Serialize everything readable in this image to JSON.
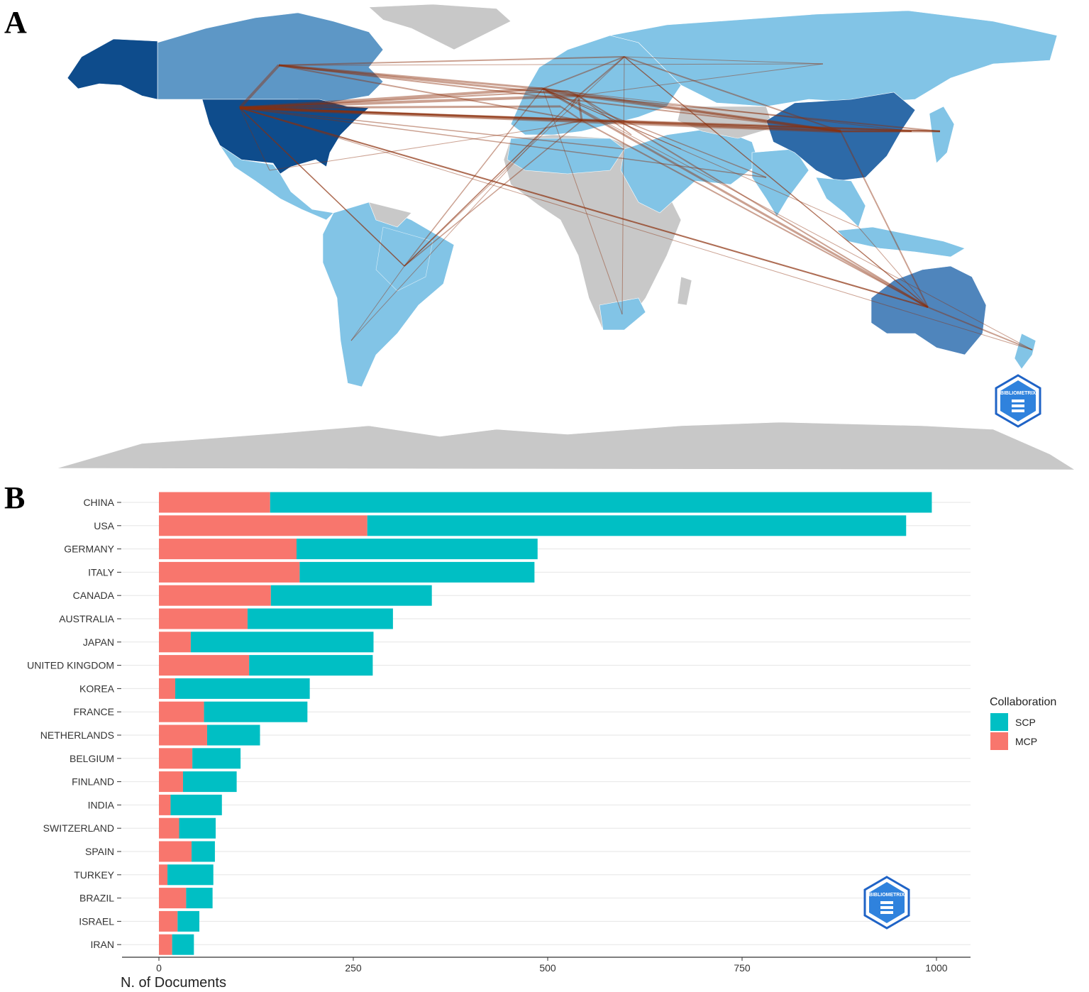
{
  "panels": {
    "a_label": "A",
    "b_label": "B"
  },
  "map": {
    "country_fill_colors": {
      "usa": "#0e4c8c",
      "china": "#2d6aa8",
      "canada": "#5d97c6",
      "australia": "#4f85bc",
      "alaska": "#0e4c8c",
      "light": "#82c4e6",
      "no_data": "#c8c8c8"
    },
    "link_color": "#8b2e0a",
    "watermark": "BIBLIOMETRIX"
  },
  "chart_data": {
    "type": "bar",
    "orientation": "horizontal",
    "stacked": true,
    "categories": [
      "CHINA",
      "USA",
      "GERMANY",
      "ITALY",
      "CANADA",
      "AUSTRALIA",
      "JAPAN",
      "UNITED KINGDOM",
      "KOREA",
      "FRANCE",
      "NETHERLANDS",
      "BELGIUM",
      "FINLAND",
      "INDIA",
      "SWITZERLAND",
      "SPAIN",
      "TURKEY",
      "BRAZIL",
      "ISRAEL",
      "IRAN"
    ],
    "series": [
      {
        "name": "MCP",
        "color": "#f8766d",
        "values": [
          143,
          268,
          177,
          181,
          144,
          114,
          41,
          116,
          21,
          58,
          62,
          43,
          31,
          15,
          26,
          42,
          11,
          35,
          24,
          17
        ]
      },
      {
        "name": "SCP",
        "color": "#00bfc4",
        "values": [
          851,
          693,
          310,
          302,
          207,
          187,
          235,
          159,
          173,
          133,
          68,
          62,
          69,
          66,
          47,
          30,
          59,
          34,
          28,
          28
        ]
      }
    ],
    "xlabel": "N. of Documents",
    "ylabel": "",
    "xlim": [
      0,
      1000
    ],
    "x_ticks": [
      0,
      250,
      500,
      750,
      1000
    ],
    "legend": {
      "title": "Collaboration",
      "position": "right",
      "order": [
        "SCP",
        "MCP"
      ]
    },
    "grid": "horizontal",
    "watermark": "BIBLIOMETRIX"
  }
}
